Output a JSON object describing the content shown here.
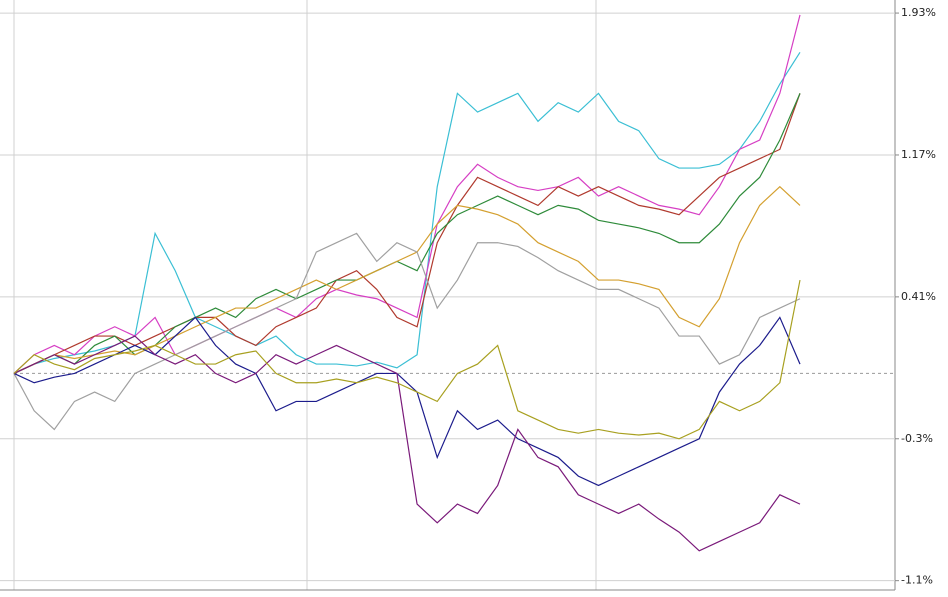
{
  "chart_data": {
    "type": "line",
    "ylim": [
      -1.16,
      2.0
    ],
    "yticks": [
      {
        "value": 1.93,
        "label": "1.93%"
      },
      {
        "value": 1.17,
        "label": "1.17%"
      },
      {
        "value": 0.41,
        "label": "0.41%"
      },
      {
        "value": -0.35,
        "label": "-0.3%"
      },
      {
        "value": -1.11,
        "label": "-1.1%"
      }
    ],
    "grid": true,
    "series": [
      {
        "color": "#3bbfd4",
        "values": [
          0,
          0.05,
          0.08,
          0.1,
          0.12,
          0.15,
          0.2,
          0.75,
          0.55,
          0.3,
          0.25,
          0.2,
          0.15,
          0.2,
          0.1,
          0.05,
          0.05,
          0.04,
          0.06,
          0.03,
          0.1,
          1.0,
          1.5,
          1.4,
          1.45,
          1.5,
          1.35,
          1.45,
          1.4,
          1.5,
          1.35,
          1.3,
          1.15,
          1.1,
          1.1,
          1.12,
          1.2,
          1.35,
          1.55,
          1.72
        ]
      },
      {
        "color": "#d63fc4",
        "values": [
          0,
          0.1,
          0.15,
          0.1,
          0.2,
          0.25,
          0.2,
          0.3,
          0.1,
          0.15,
          0.2,
          0.25,
          0.3,
          0.35,
          0.3,
          0.4,
          0.45,
          0.42,
          0.4,
          0.35,
          0.3,
          0.8,
          1.0,
          1.12,
          1.05,
          1.0,
          0.98,
          1.0,
          1.05,
          0.95,
          1.0,
          0.95,
          0.9,
          0.88,
          0.85,
          1.0,
          1.2,
          1.25,
          1.5,
          1.92
        ]
      },
      {
        "color": "#b03a2e",
        "values": [
          0,
          0.05,
          0.1,
          0.15,
          0.2,
          0.2,
          0.15,
          0.2,
          0.25,
          0.3,
          0.3,
          0.2,
          0.15,
          0.25,
          0.3,
          0.35,
          0.5,
          0.55,
          0.45,
          0.3,
          0.25,
          0.7,
          0.9,
          1.05,
          1.0,
          0.95,
          0.9,
          1.0,
          0.95,
          1.0,
          0.95,
          0.9,
          0.88,
          0.85,
          0.95,
          1.05,
          1.1,
          1.15,
          1.2,
          1.5
        ]
      },
      {
        "color": "#2e8b3a",
        "values": [
          0,
          0.05,
          0.1,
          0.05,
          0.15,
          0.2,
          0.1,
          0.15,
          0.25,
          0.3,
          0.35,
          0.3,
          0.4,
          0.45,
          0.4,
          0.45,
          0.5,
          0.5,
          0.55,
          0.6,
          0.55,
          0.75,
          0.85,
          0.9,
          0.95,
          0.9,
          0.85,
          0.9,
          0.88,
          0.82,
          0.8,
          0.78,
          0.75,
          0.7,
          0.7,
          0.8,
          0.95,
          1.05,
          1.25,
          1.5
        ]
      },
      {
        "color": "#d4a030",
        "values": [
          0,
          0.05,
          0.1,
          0.08,
          0.1,
          0.12,
          0.1,
          0.15,
          0.2,
          0.25,
          0.3,
          0.35,
          0.35,
          0.4,
          0.45,
          0.5,
          0.45,
          0.5,
          0.55,
          0.6,
          0.65,
          0.8,
          0.9,
          0.88,
          0.85,
          0.8,
          0.7,
          0.65,
          0.6,
          0.5,
          0.5,
          0.48,
          0.45,
          0.3,
          0.25,
          0.4,
          0.7,
          0.9,
          1.0,
          0.9
        ]
      },
      {
        "color": "#a0a0a0",
        "values": [
          0,
          -0.2,
          -0.3,
          -0.15,
          -0.1,
          -0.15,
          0.0,
          0.05,
          0.1,
          0.15,
          0.2,
          0.25,
          0.3,
          0.35,
          0.4,
          0.65,
          0.7,
          0.75,
          0.6,
          0.7,
          0.65,
          0.35,
          0.5,
          0.7,
          0.7,
          0.68,
          0.62,
          0.55,
          0.5,
          0.45,
          0.45,
          0.4,
          0.35,
          0.2,
          0.2,
          0.05,
          0.1,
          0.3,
          0.35,
          0.4
        ]
      },
      {
        "color": "#1c1c8c",
        "values": [
          0,
          -0.05,
          -0.02,
          0.0,
          0.05,
          0.1,
          0.15,
          0.1,
          0.2,
          0.3,
          0.15,
          0.05,
          0.0,
          -0.2,
          -0.15,
          -0.15,
          -0.1,
          -0.05,
          0.0,
          0.0,
          -0.1,
          -0.45,
          -0.2,
          -0.3,
          -0.25,
          -0.35,
          -0.4,
          -0.45,
          -0.55,
          -0.6,
          -0.55,
          -0.5,
          -0.45,
          -0.4,
          -0.35,
          -0.1,
          0.05,
          0.15,
          0.3,
          0.05
        ]
      },
      {
        "color": "#7a1a7a",
        "values": [
          0,
          0.05,
          0.1,
          0.05,
          0.1,
          0.15,
          0.2,
          0.1,
          0.05,
          0.1,
          0.0,
          -0.05,
          0.0,
          0.1,
          0.05,
          0.1,
          0.15,
          0.1,
          0.05,
          0.0,
          -0.7,
          -0.8,
          -0.7,
          -0.75,
          -0.6,
          -0.3,
          -0.45,
          -0.5,
          -0.65,
          -0.7,
          -0.75,
          -0.7,
          -0.78,
          -0.85,
          -0.95,
          -0.9,
          -0.85,
          -0.8,
          -0.65,
          -0.7
        ]
      },
      {
        "color": "#a8a020",
        "values": [
          0,
          0.1,
          0.05,
          0.02,
          0.08,
          0.1,
          0.12,
          0.15,
          0.1,
          0.05,
          0.05,
          0.1,
          0.12,
          0.0,
          -0.05,
          -0.05,
          -0.03,
          -0.05,
          -0.02,
          -0.05,
          -0.1,
          -0.15,
          0.0,
          0.05,
          0.15,
          -0.2,
          -0.25,
          -0.3,
          -0.32,
          -0.3,
          -0.32,
          -0.33,
          -0.32,
          -0.35,
          -0.3,
          -0.15,
          -0.2,
          -0.15,
          -0.05,
          0.5
        ]
      }
    ]
  }
}
